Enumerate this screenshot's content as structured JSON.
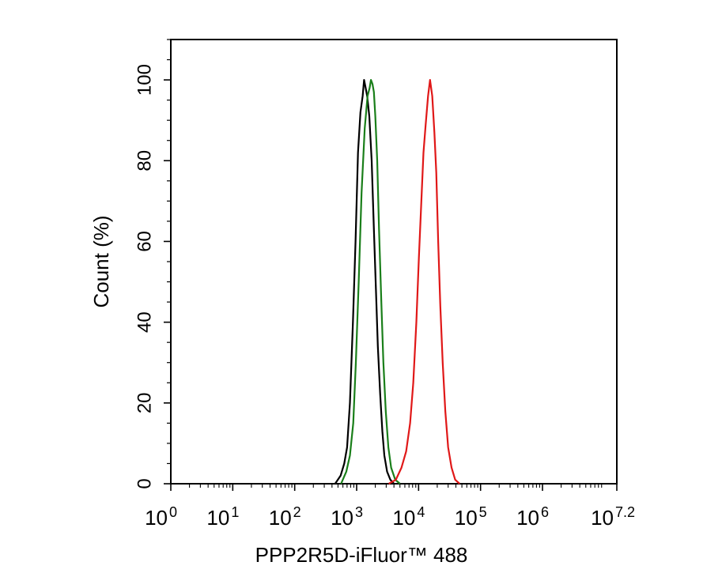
{
  "chart_data": {
    "type": "line",
    "title": "",
    "xlabel": "PPP2R5D-iFluor™ 488",
    "ylabel": "Count  (%)",
    "x_scale": "log10",
    "xlim": [
      1,
      15848932
    ],
    "ylim": [
      0,
      110
    ],
    "grid": false,
    "legend": "none",
    "x_ticks": [
      {
        "base": "10",
        "exp": "0",
        "value": 1
      },
      {
        "base": "10",
        "exp": "1",
        "value": 10
      },
      {
        "base": "10",
        "exp": "2",
        "value": 100
      },
      {
        "base": "10",
        "exp": "3",
        "value": 1000
      },
      {
        "base": "10",
        "exp": "4",
        "value": 10000
      },
      {
        "base": "10",
        "exp": "5",
        "value": 100000
      },
      {
        "base": "10",
        "exp": "6",
        "value": 1000000
      },
      {
        "base": "10",
        "exp": "7.2",
        "value": 15848932
      }
    ],
    "y_ticks": [
      "0",
      "20",
      "40",
      "60",
      "80",
      "100"
    ],
    "series": [
      {
        "color": "#000000",
        "points": [
          [
            450,
            0
          ],
          [
            550,
            2
          ],
          [
            630,
            5
          ],
          [
            700,
            9
          ],
          [
            780,
            20
          ],
          [
            870,
            40
          ],
          [
            960,
            60
          ],
          [
            1050,
            82
          ],
          [
            1150,
            92
          ],
          [
            1250,
            96
          ],
          [
            1320,
            100
          ],
          [
            1400,
            98
          ],
          [
            1480,
            96
          ],
          [
            1600,
            91
          ],
          [
            1750,
            80
          ],
          [
            1900,
            63
          ],
          [
            2050,
            48
          ],
          [
            2200,
            34
          ],
          [
            2400,
            22
          ],
          [
            2600,
            13
          ],
          [
            2800,
            7
          ],
          [
            3100,
            3
          ],
          [
            3500,
            1
          ],
          [
            4000,
            0
          ]
        ]
      },
      {
        "color": "#1a7f1a",
        "points": [
          [
            560,
            0
          ],
          [
            680,
            3
          ],
          [
            780,
            7
          ],
          [
            880,
            15
          ],
          [
            970,
            30
          ],
          [
            1080,
            50
          ],
          [
            1200,
            72
          ],
          [
            1350,
            88
          ],
          [
            1500,
            96
          ],
          [
            1620,
            98
          ],
          [
            1700,
            100
          ],
          [
            1800,
            99
          ],
          [
            1900,
            97
          ],
          [
            2000,
            91
          ],
          [
            2150,
            80
          ],
          [
            2300,
            63
          ],
          [
            2500,
            45
          ],
          [
            2700,
            30
          ],
          [
            2950,
            18
          ],
          [
            3250,
            9
          ],
          [
            3600,
            4
          ],
          [
            4200,
            1
          ],
          [
            5000,
            0
          ]
        ]
      },
      {
        "color": "#e01818",
        "points": [
          [
            3300,
            0
          ],
          [
            4300,
            1
          ],
          [
            5300,
            4
          ],
          [
            6300,
            8
          ],
          [
            7300,
            15
          ],
          [
            8200,
            25
          ],
          [
            9200,
            40
          ],
          [
            10100,
            56
          ],
          [
            11000,
            69
          ],
          [
            12000,
            82
          ],
          [
            13000,
            89
          ],
          [
            14200,
            96
          ],
          [
            15300,
            100
          ],
          [
            16600,
            96
          ],
          [
            18000,
            87
          ],
          [
            19300,
            77
          ],
          [
            20700,
            60
          ],
          [
            22400,
            44
          ],
          [
            24500,
            30
          ],
          [
            27000,
            18
          ],
          [
            30000,
            9
          ],
          [
            34000,
            4
          ],
          [
            39000,
            1
          ],
          [
            46000,
            0
          ]
        ]
      }
    ]
  }
}
